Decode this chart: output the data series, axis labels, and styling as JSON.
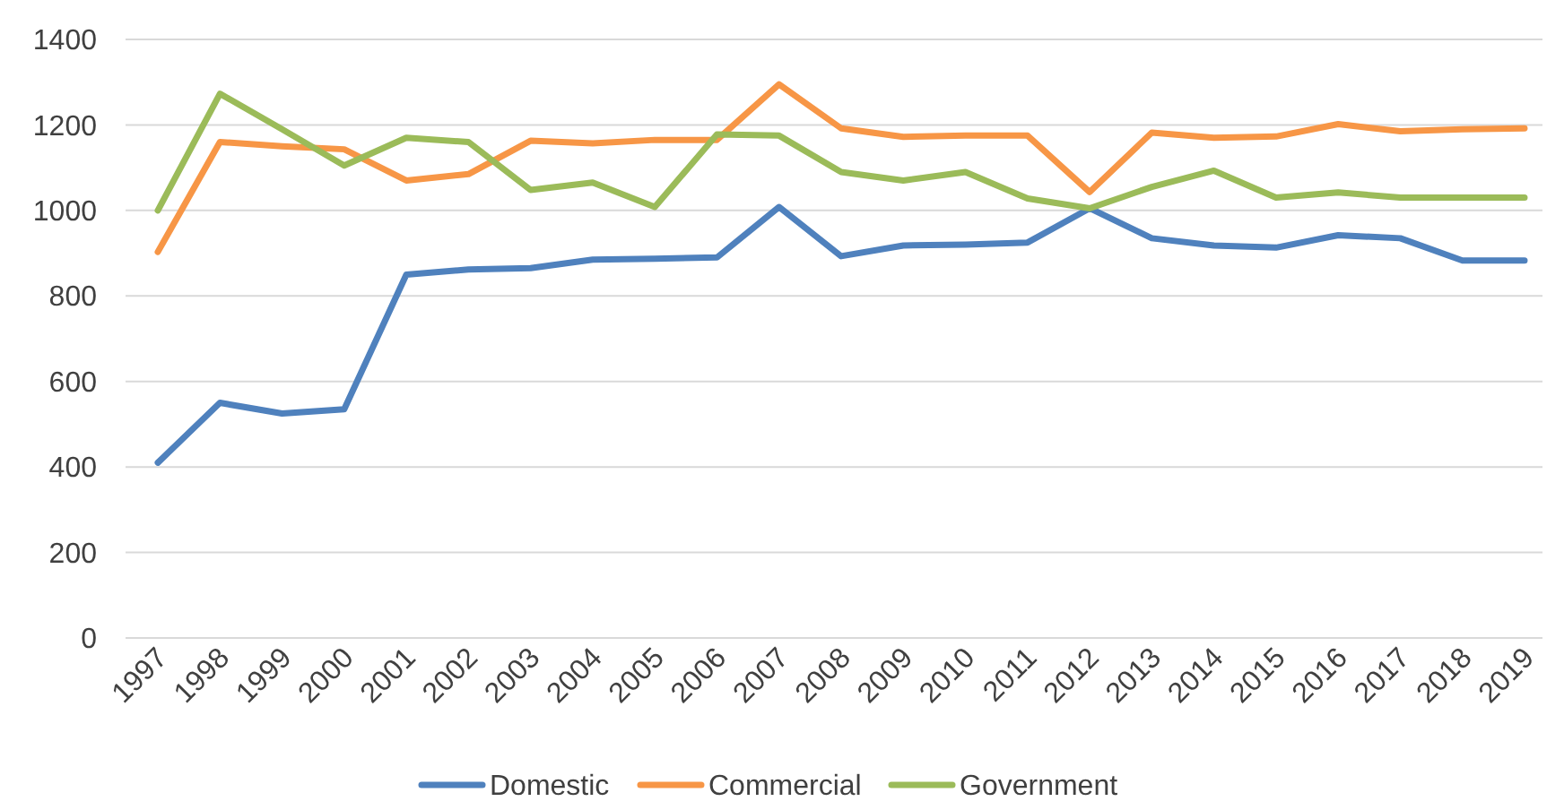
{
  "chart_data": {
    "type": "line",
    "categories": [
      "1997",
      "1998",
      "1999",
      "2000",
      "2001",
      "2002",
      "2003",
      "2004",
      "2005",
      "2006",
      "2007",
      "2008",
      "2009",
      "2010",
      "2011",
      "2012",
      "2013",
      "2014",
      "2015",
      "2016",
      "2017",
      "2018",
      "2019"
    ],
    "series": [
      {
        "name": "Domestic",
        "color": "#4f81bd",
        "values": [
          410,
          550,
          525,
          535,
          850,
          862,
          865,
          885,
          887,
          890,
          1008,
          893,
          918,
          920,
          925,
          1005,
          935,
          918,
          913,
          942,
          935,
          883,
          883
        ]
      },
      {
        "name": "Commercial",
        "color": "#f79646",
        "values": [
          903,
          1160,
          1150,
          1143,
          1070,
          1085,
          1163,
          1157,
          1165,
          1165,
          1295,
          1192,
          1172,
          1175,
          1175,
          1043,
          1182,
          1170,
          1173,
          1202,
          1185,
          1190,
          1192
        ]
      },
      {
        "name": "Government",
        "color": "#9bbb59",
        "values": [
          1000,
          1273,
          1190,
          1105,
          1170,
          1160,
          1048,
          1065,
          1008,
          1178,
          1175,
          1090,
          1070,
          1090,
          1028,
          1005,
          1055,
          1093,
          1030,
          1042,
          1030,
          1030,
          1030
        ]
      }
    ],
    "ylim": [
      0,
      1400
    ],
    "yticks": [
      0,
      200,
      400,
      600,
      800,
      1000,
      1200,
      1400
    ],
    "grid": "y",
    "legend": "bottom",
    "marker": "none",
    "line_style": "solid"
  }
}
